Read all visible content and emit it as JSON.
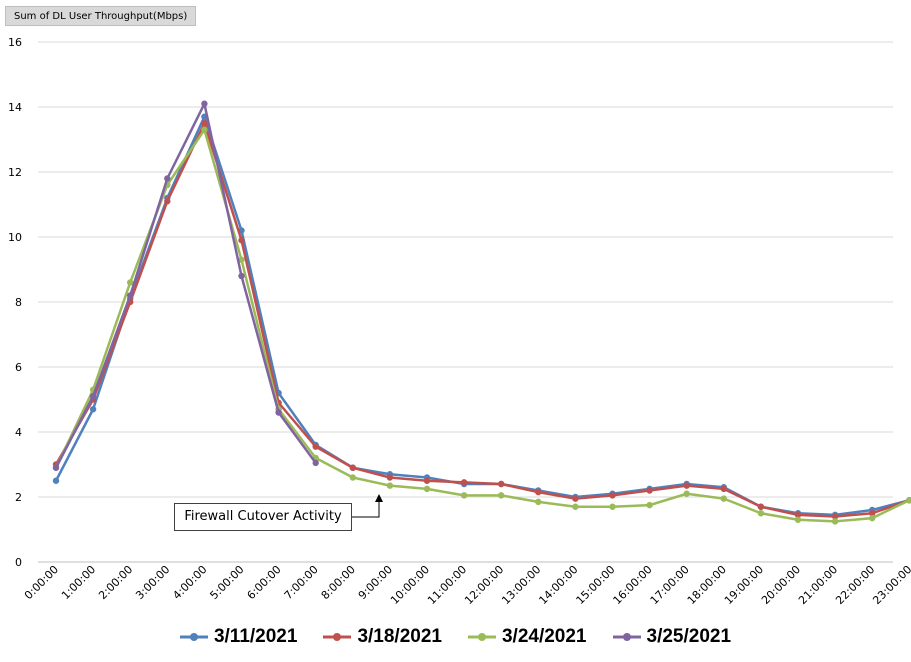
{
  "chart_data": {
    "type": "line",
    "pivot_field_label": "Sum of DL User Throughput(Mbps)",
    "categories": [
      "0:00:00",
      "1:00:00",
      "2:00:00",
      "3:00:00",
      "4:00:00",
      "5:00:00",
      "6:00:00",
      "7:00:00",
      "8:00:00",
      "9:00:00",
      "10:00:00",
      "11:00:00",
      "12:00:00",
      "13:00:00",
      "14:00:00",
      "15:00:00",
      "16:00:00",
      "17:00:00",
      "18:00:00",
      "19:00:00",
      "20:00:00",
      "21:00:00",
      "22:00:00",
      "23:00:00"
    ],
    "ylim": [
      0,
      16
    ],
    "yticks": [
      "0",
      "2",
      "4",
      "6",
      "8",
      "10",
      "12",
      "14",
      "16"
    ],
    "grid": true,
    "legend_position": "bottom",
    "series": [
      {
        "name": "3/11/2021",
        "color": "#4f81bd",
        "values": [
          2.5,
          4.7,
          8.1,
          11.2,
          13.7,
          10.2,
          5.2,
          3.6,
          2.9,
          2.7,
          2.6,
          2.4,
          2.4,
          2.2,
          2.0,
          2.1,
          2.25,
          2.4,
          2.3,
          1.7,
          1.5,
          1.45,
          1.6,
          1.9
        ]
      },
      {
        "name": "3/18/2021",
        "color": "#c0504d",
        "values": [
          3.0,
          5.0,
          8.0,
          11.1,
          13.5,
          9.9,
          4.9,
          3.55,
          2.9,
          2.6,
          2.5,
          2.45,
          2.4,
          2.15,
          1.95,
          2.05,
          2.2,
          2.35,
          2.25,
          1.7,
          1.45,
          1.4,
          1.5,
          1.9
        ]
      },
      {
        "name": "3/24/2021",
        "color": "#9bbb59",
        "values": [
          2.9,
          5.3,
          8.6,
          11.6,
          13.3,
          9.3,
          4.7,
          3.2,
          2.6,
          2.35,
          2.25,
          2.05,
          2.05,
          1.85,
          1.7,
          1.7,
          1.75,
          2.1,
          1.95,
          1.5,
          1.3,
          1.25,
          1.35,
          1.9
        ]
      },
      {
        "name": "3/25/2021",
        "color": "#8064a2",
        "values": [
          2.9,
          5.1,
          8.2,
          11.8,
          14.1,
          8.8,
          4.6,
          3.05,
          null,
          null,
          null,
          null,
          null,
          null,
          null,
          null,
          null,
          null,
          null,
          null,
          null,
          null,
          null,
          null
        ]
      }
    ],
    "annotation": "Firewall Cutover Activity"
  }
}
